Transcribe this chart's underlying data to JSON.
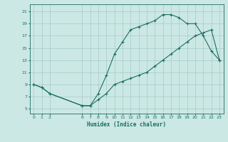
{
  "xlabel": "Humidex (Indice chaleur)",
  "bg_color": "#cce8e4",
  "line_color": "#1a6e64",
  "grid_color": "#aacfcb",
  "upper_line": {
    "x": [
      0,
      1,
      2,
      6,
      7,
      8,
      9,
      10,
      11,
      12,
      13,
      14,
      15,
      16,
      17,
      18,
      19,
      20,
      21,
      22,
      23
    ],
    "y": [
      9,
      8.5,
      7.5,
      5.5,
      5.5,
      7.5,
      10.5,
      14,
      16,
      18,
      18.5,
      19,
      19.5,
      20.5,
      20.5,
      20,
      19,
      19,
      17,
      14.5,
      13
    ]
  },
  "lower_line": {
    "x": [
      0,
      1,
      2,
      6,
      7,
      8,
      9,
      10,
      11,
      12,
      13,
      14,
      15,
      16,
      17,
      18,
      19,
      20,
      21,
      22,
      23
    ],
    "y": [
      9,
      8.5,
      7.5,
      5.5,
      5.5,
      6.5,
      7.5,
      9,
      9.5,
      10,
      10.5,
      11,
      12,
      13,
      14,
      15,
      16,
      17,
      17.5,
      18,
      13
    ]
  },
  "xticks": [
    0,
    1,
    2,
    6,
    7,
    8,
    9,
    10,
    11,
    12,
    13,
    14,
    15,
    16,
    17,
    18,
    19,
    20,
    21,
    22,
    23
  ],
  "yticks": [
    5,
    7,
    9,
    11,
    13,
    15,
    17,
    19,
    21
  ],
  "xlim": [
    -0.5,
    23.5
  ],
  "ylim": [
    4.2,
    22.2
  ],
  "figsize": [
    3.2,
    2.0
  ],
  "dpi": 100
}
